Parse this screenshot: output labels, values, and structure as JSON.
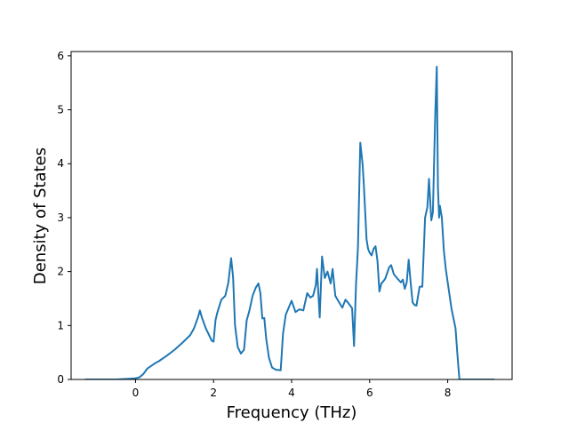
{
  "chart_data": {
    "type": "line",
    "title": "",
    "xlabel": "Frequency (THz)",
    "ylabel": "Density of States",
    "xlim": [
      -1.65,
      9.65
    ],
    "ylim": [
      0,
      6.08
    ],
    "x_ticks": [
      0,
      2,
      4,
      6,
      8
    ],
    "x_tick_labels": [
      "0",
      "2",
      "4",
      "6",
      "8"
    ],
    "y_ticks": [
      0,
      1,
      2,
      3,
      4,
      5,
      6
    ],
    "y_tick_labels": [
      "0",
      "1",
      "2",
      "3",
      "4",
      "5",
      "6"
    ],
    "grid": false,
    "legend": false,
    "series": [
      {
        "color": "#1f77b4",
        "x": [
          -1.3,
          -1.0,
          -0.5,
          -0.2,
          0.0,
          0.1,
          0.2,
          0.3,
          0.4,
          0.5,
          0.6,
          0.8,
          1.0,
          1.2,
          1.4,
          1.5,
          1.6,
          1.65,
          1.7,
          1.8,
          1.9,
          1.95,
          2.0,
          2.05,
          2.1,
          2.2,
          2.3,
          2.38,
          2.45,
          2.5,
          2.55,
          2.62,
          2.7,
          2.78,
          2.85,
          2.92,
          3.0,
          3.08,
          3.15,
          3.2,
          3.25,
          3.3,
          3.35,
          3.42,
          3.5,
          3.6,
          3.72,
          3.78,
          3.85,
          4.0,
          4.1,
          4.2,
          4.3,
          4.4,
          4.48,
          4.55,
          4.62,
          4.65,
          4.72,
          4.78,
          4.85,
          4.92,
          5.0,
          5.05,
          5.12,
          5.2,
          5.3,
          5.38,
          5.45,
          5.55,
          5.6,
          5.65,
          5.7,
          5.76,
          5.82,
          5.85,
          5.92,
          5.96,
          6.0,
          6.05,
          6.1,
          6.15,
          6.2,
          6.25,
          6.3,
          6.35,
          6.4,
          6.5,
          6.55,
          6.62,
          6.7,
          6.8,
          6.85,
          6.9,
          6.95,
          7.0,
          7.05,
          7.1,
          7.15,
          7.2,
          7.28,
          7.35,
          7.42,
          7.48,
          7.52,
          7.58,
          7.62,
          7.68,
          7.72,
          7.75,
          7.78,
          7.8,
          7.85,
          7.9,
          7.95,
          8.0,
          8.1,
          8.2,
          8.25,
          8.3,
          8.5,
          9.2
        ],
        "y": [
          0.0,
          0.0,
          0.0,
          0.01,
          0.02,
          0.04,
          0.1,
          0.2,
          0.25,
          0.3,
          0.34,
          0.44,
          0.55,
          0.68,
          0.82,
          0.95,
          1.15,
          1.28,
          1.15,
          0.95,
          0.8,
          0.72,
          0.7,
          1.1,
          1.25,
          1.48,
          1.55,
          1.8,
          2.25,
          1.9,
          1.0,
          0.6,
          0.48,
          0.55,
          1.1,
          1.28,
          1.55,
          1.7,
          1.78,
          1.6,
          1.13,
          1.14,
          0.75,
          0.4,
          0.22,
          0.18,
          0.17,
          0.85,
          1.2,
          1.46,
          1.25,
          1.3,
          1.28,
          1.6,
          1.52,
          1.55,
          1.75,
          2.05,
          1.15,
          2.28,
          1.88,
          2.0,
          1.78,
          2.05,
          1.55,
          1.45,
          1.33,
          1.48,
          1.42,
          1.32,
          0.62,
          1.75,
          2.45,
          4.39,
          3.98,
          3.62,
          2.6,
          2.42,
          2.35,
          2.3,
          2.42,
          2.47,
          2.2,
          1.63,
          1.78,
          1.82,
          1.87,
          2.08,
          2.12,
          1.95,
          1.88,
          1.8,
          1.85,
          1.68,
          1.8,
          2.22,
          1.8,
          1.43,
          1.38,
          1.37,
          1.72,
          1.72,
          3.0,
          3.2,
          3.72,
          2.95,
          3.1,
          4.9,
          5.8,
          3.55,
          3.0,
          3.22,
          3.0,
          2.4,
          2.05,
          1.8,
          1.3,
          0.95,
          0.45,
          0.0,
          0.0,
          0.0
        ]
      }
    ]
  }
}
